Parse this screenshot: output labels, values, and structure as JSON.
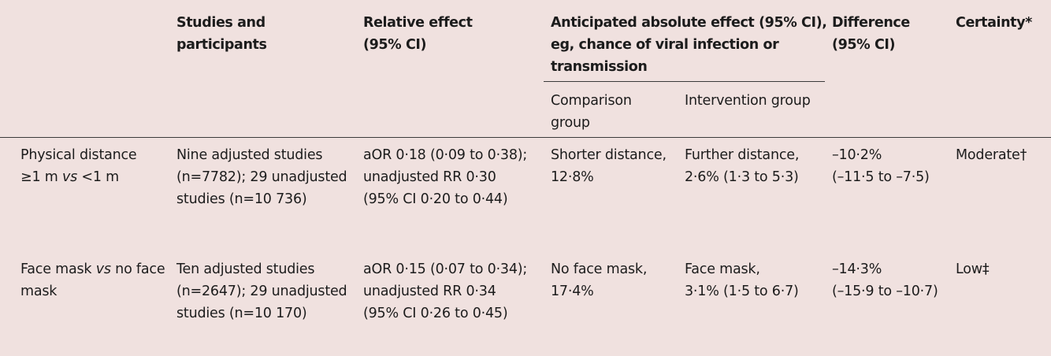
{
  "header": {
    "studies": "Studies and\nparticipants",
    "relative": "Relative effect\n(95% CI)",
    "anticipated": "Anticipated absolute effect (95% CI),\neg, chance of viral infection or\ntransmission",
    "comparison": "Comparison\ngroup",
    "intervention": "Intervention group",
    "difference": "Difference\n(95% CI)",
    "certainty": "Certainty*"
  },
  "rows": [
    {
      "label_pre": "Physical distance\n≥1 m ",
      "label_vs": "vs",
      "label_post": " <1 m",
      "studies": "Nine adjusted studies\n(n=7782); 29 unadjusted\nstudies (n=10 736)",
      "relative": "aOR 0·18 (0·09 to 0·38);\nunadjusted RR 0·30\n(95% CI 0·20 to 0·44)",
      "comparison": "Shorter distance,\n12·8%",
      "intervention": "Further distance,\n2·6% (1·3 to 5·3)",
      "difference": "–10·2%\n(–11·5 to –7·5)",
      "certainty": "Moderate†"
    },
    {
      "label_pre": "Face mask ",
      "label_vs": "vs",
      "label_post": " no face\nmask",
      "studies": "Ten adjusted studies\n(n=2647); 29 unadjusted\nstudies (n=10 170)",
      "relative": "aOR 0·15 (0·07 to 0·34);\nunadjusted RR 0·34\n(95% CI 0·26 to 0·45)",
      "comparison": "No face mask,\n17·4%",
      "intervention": "Face mask,\n3·1% (1·5 to 6·7)",
      "difference": "–14·3%\n(–15·9 to –10·7)",
      "certainty": "Low‡"
    }
  ]
}
